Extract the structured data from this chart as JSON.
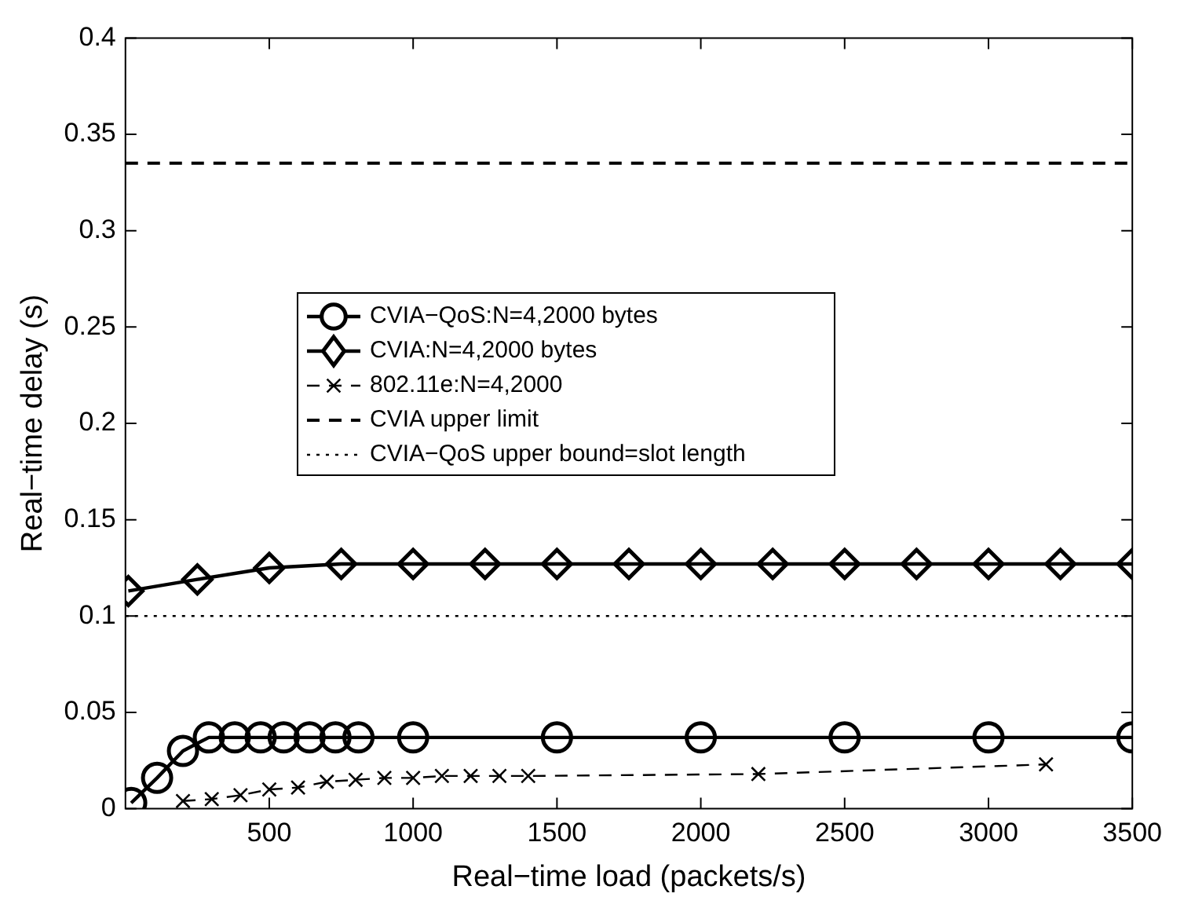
{
  "chart_data": {
    "type": "line",
    "xlabel": "Real−time load (packets/s)",
    "ylabel": "Real−time delay (s)",
    "xlim": [
      0,
      3500
    ],
    "xticks": [
      500,
      1000,
      1500,
      2000,
      2500,
      3000,
      3500
    ],
    "ylim": [
      0,
      0.4
    ],
    "yticks": [
      0,
      0.05,
      0.1,
      0.15,
      0.2,
      0.25,
      0.3,
      0.35,
      0.4
    ],
    "grid": false,
    "legend": "center",
    "line_style": "solid",
    "series": [
      {
        "name": "CVIA−QoS:N=4,2000 bytes",
        "color": "#000000",
        "marker": "circle",
        "x": [
          20,
          110,
          200,
          290,
          380,
          470,
          550,
          640,
          730,
          810,
          1000,
          1500,
          2000,
          2500,
          3000,
          3500
        ],
        "values": [
          0.003,
          0.016,
          0.03,
          0.037,
          0.037,
          0.037,
          0.037,
          0.037,
          0.037,
          0.037,
          0.037,
          0.037,
          0.037,
          0.037,
          0.037,
          0.037
        ]
      },
      {
        "name": "CVIA:N=4,2000 bytes",
        "color": "#000000",
        "marker": "diamond",
        "x": [
          10,
          250,
          500,
          750,
          1000,
          1250,
          1500,
          1750,
          2000,
          2250,
          2500,
          2750,
          3000,
          3250,
          3500
        ],
        "values": [
          0.113,
          0.119,
          0.125,
          0.127,
          0.127,
          0.127,
          0.127,
          0.127,
          0.127,
          0.127,
          0.127,
          0.127,
          0.127,
          0.127,
          0.127
        ]
      },
      {
        "name": "802.11e:N=4,2000",
        "color": "#000000",
        "marker": "cross",
        "line_style": "dashed",
        "x": [
          200,
          300,
          400,
          500,
          600,
          700,
          800,
          900,
          1000,
          1100,
          1200,
          1300,
          1400,
          2200,
          3200
        ],
        "values": [
          0.004,
          0.005,
          0.007,
          0.01,
          0.011,
          0.014,
          0.015,
          0.016,
          0.016,
          0.017,
          0.017,
          0.017,
          0.017,
          0.018,
          0.023
        ]
      }
    ],
    "ref_lines": [
      {
        "axis": "y",
        "value": 0.335,
        "label": "CVIA upper limit",
        "line_style": "dashed",
        "color": "#000000"
      },
      {
        "axis": "y",
        "value": 0.1,
        "label": "CVIA−QoS upper bound=slot length",
        "line_style": "dotted",
        "color": "#000000"
      }
    ]
  }
}
